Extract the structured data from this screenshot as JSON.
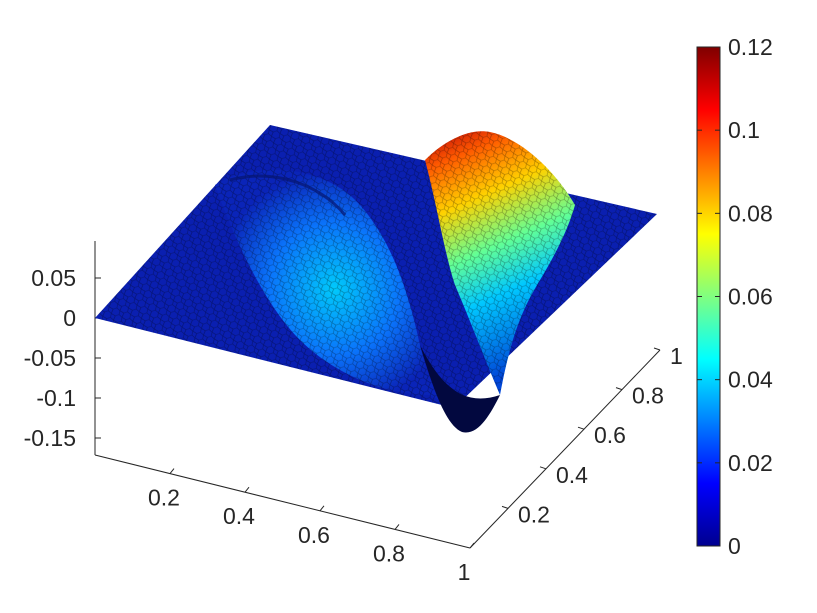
{
  "chart_data": {
    "type": "surface",
    "colormap": "jet",
    "edge_color": "#000000",
    "title": "",
    "xlabel": "",
    "ylabel": "",
    "zlabel": "",
    "xlim": [
      0,
      1
    ],
    "ylim": [
      0,
      1
    ],
    "zlim": [
      -0.18,
      0.1
    ],
    "clim": [
      0,
      0.12
    ],
    "x_ticks": [
      0.2,
      0.4,
      0.6,
      0.8,
      1
    ],
    "x_tick_labels": [
      "0.2",
      "0.4",
      "0.6",
      "0.8",
      "1"
    ],
    "y_ticks": [
      0.2,
      0.4,
      0.6,
      0.8,
      1
    ],
    "y_tick_labels": [
      "0.2",
      "0.4",
      "0.6",
      "0.8",
      "1"
    ],
    "z_ticks": [
      0.05,
      0,
      -0.05,
      -0.1,
      -0.15
    ],
    "z_tick_labels": [
      "0.05",
      "0",
      "-0.05",
      "-0.1",
      "-0.15"
    ],
    "colorbar": {
      "ticks": [
        0.12,
        0.1,
        0.08,
        0.06,
        0.04,
        0.02,
        0
      ],
      "tick_labels": [
        "0.12",
        "0.1",
        "0.08",
        "0.06",
        "0.04",
        "0.02",
        "0"
      ],
      "colors": [
        "#00008f",
        "#0000ff",
        "#0080ff",
        "#00ffff",
        "#80ff80",
        "#ffff00",
        "#ff8000",
        "#ff0000",
        "#800000"
      ]
    },
    "features": [
      {
        "kind": "ridge",
        "x_range": [
          0.55,
          0.95
        ],
        "y": 0.9,
        "peak_z": 0.12
      },
      {
        "kind": "arc",
        "center_x": 0.5,
        "center_y": 0.0,
        "radius": 0.5,
        "peak_z": 0.04
      },
      {
        "kind": "trough",
        "x": 0.72,
        "y": 0.45,
        "min_z": -0.15
      }
    ],
    "grid": false,
    "legend": "none"
  }
}
